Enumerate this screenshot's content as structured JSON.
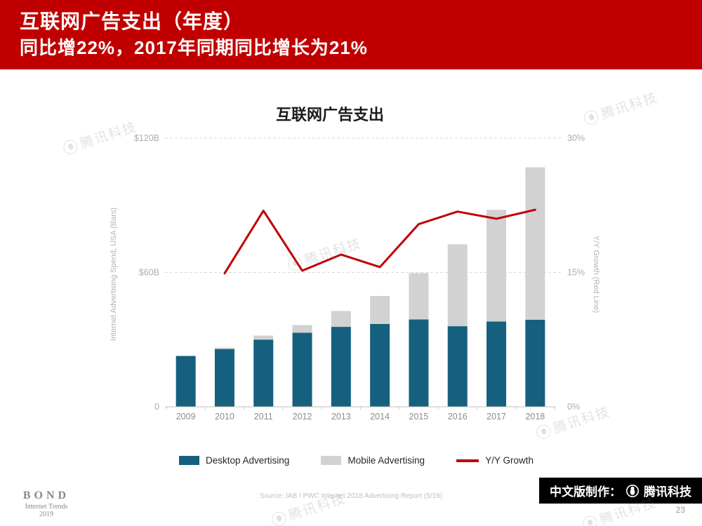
{
  "header": {
    "title": "互联网广告支出（年度）",
    "subtitle": "同比增22%，2017年同期同比增长为21%"
  },
  "chart_data": {
    "type": "bar+line",
    "title": "互联网广告支出",
    "categories": [
      "2009",
      "2010",
      "2011",
      "2012",
      "2013",
      "2014",
      "2015",
      "2016",
      "2017",
      "2018"
    ],
    "series": [
      {
        "name": "Desktop Advertising",
        "type": "bar",
        "stacked": true,
        "color": "#15607E",
        "values": [
          22.7,
          25.8,
          30.0,
          33.1,
          35.7,
          37.0,
          39.0,
          36.0,
          38.1,
          38.9
        ]
      },
      {
        "name": "Mobile Advertising",
        "type": "bar",
        "stacked": true,
        "color": "#D2D2D2",
        "values": [
          0.0,
          0.6,
          1.8,
          3.4,
          7.1,
          12.5,
          20.7,
          36.6,
          49.9,
          68.1
        ]
      },
      {
        "name": "Y/Y Growth",
        "type": "line",
        "axis": "right",
        "color": "#C00000",
        "values": [
          null,
          14.9,
          21.9,
          15.2,
          17.0,
          15.6,
          20.4,
          21.8,
          21.0,
          22.0
        ]
      }
    ],
    "left_axis": {
      "title": "Internet Advertising Spend, USA (Bars)",
      "max": 120,
      "ticks": [
        {
          "label": "$120B",
          "value": 120
        },
        {
          "label": "$60B",
          "value": 60
        },
        {
          "label": "0",
          "value": 0
        }
      ]
    },
    "right_axis": {
      "title": "Y/Y Growth (Red Line)",
      "max": 30,
      "ticks": [
        {
          "label": "30%",
          "value": 30
        },
        {
          "label": "15%",
          "value": 15
        },
        {
          "label": "0%",
          "value": 0
        }
      ]
    },
    "grid": "dashed-horizontal",
    "legend_position": "bottom"
  },
  "footer": {
    "source": "Source: IAB / PWC Internet 2018 Advertising Report (5/19)",
    "credit_prefix": "中文版制作：",
    "credit_brand": "腾讯科技",
    "page_number": "23"
  },
  "bond": {
    "name": "BOND",
    "line1": "Internet Trends",
    "line2": "2019"
  },
  "watermark": {
    "text": "腾讯科技"
  },
  "colors": {
    "header_red": "#C00000",
    "desktop_bar": "#15607E",
    "mobile_bar": "#D2D2D2",
    "growth_line": "#C00000",
    "credit_bar": "#000000"
  }
}
